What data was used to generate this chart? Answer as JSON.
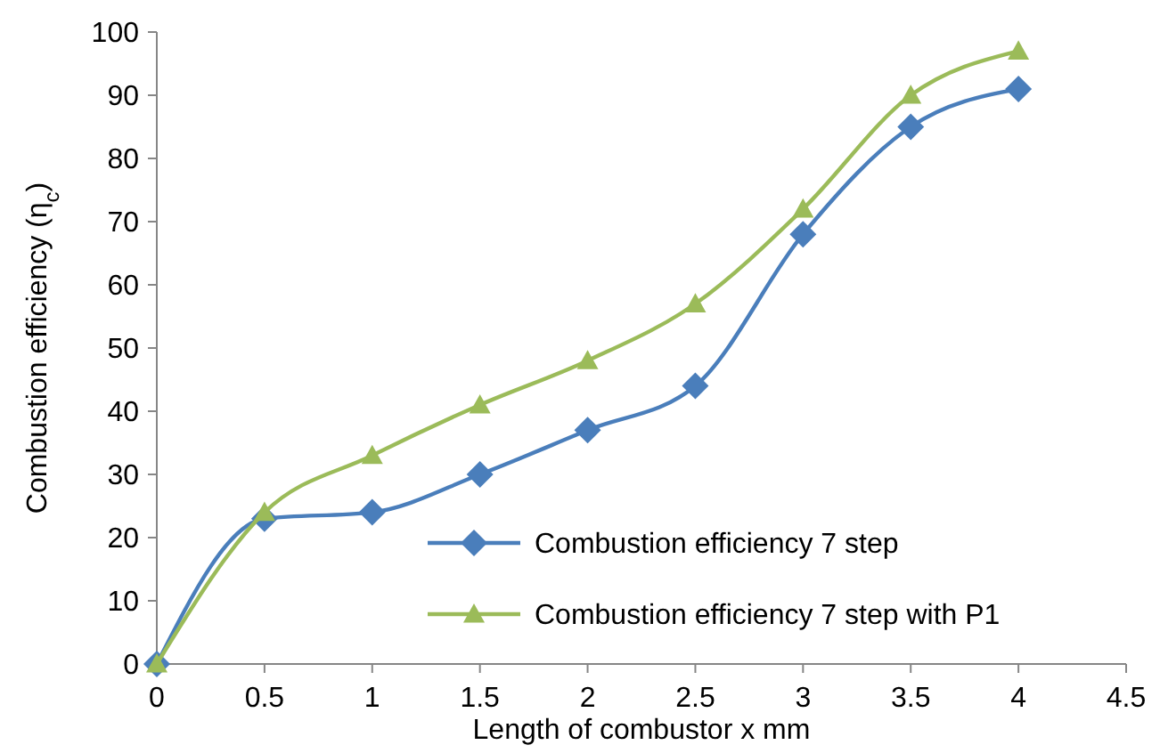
{
  "chart_data": {
    "type": "line",
    "xlabel": "Length of combustor x mm",
    "ylabel": "Combustion efficiency (η$_{c}$)",
    "x": [
      0,
      0.5,
      1,
      1.5,
      2,
      2.5,
      3,
      3.5,
      4
    ],
    "series": [
      {
        "name": "Combustion efficiency 7 step",
        "color": "#4a7ebb",
        "marker": "diamond",
        "values": [
          0,
          23,
          24,
          30,
          37,
          44,
          68,
          85,
          91
        ]
      },
      {
        "name": "Combustion efficiency 7 step with P1",
        "color": "#9bbb59",
        "marker": "triangle",
        "values": [
          0,
          24,
          33,
          41,
          48,
          57,
          72,
          90,
          97
        ]
      }
    ],
    "xlim": [
      0,
      4.5
    ],
    "xticks": [
      0,
      0.5,
      1,
      1.5,
      2,
      2.5,
      3,
      3.5,
      4,
      4.5
    ],
    "ylim": [
      0,
      100
    ],
    "yticks": [
      0,
      10,
      20,
      30,
      40,
      50,
      60,
      70,
      80,
      90,
      100
    ],
    "grid": false,
    "legend": "bottom right",
    "line_style": "solid"
  }
}
